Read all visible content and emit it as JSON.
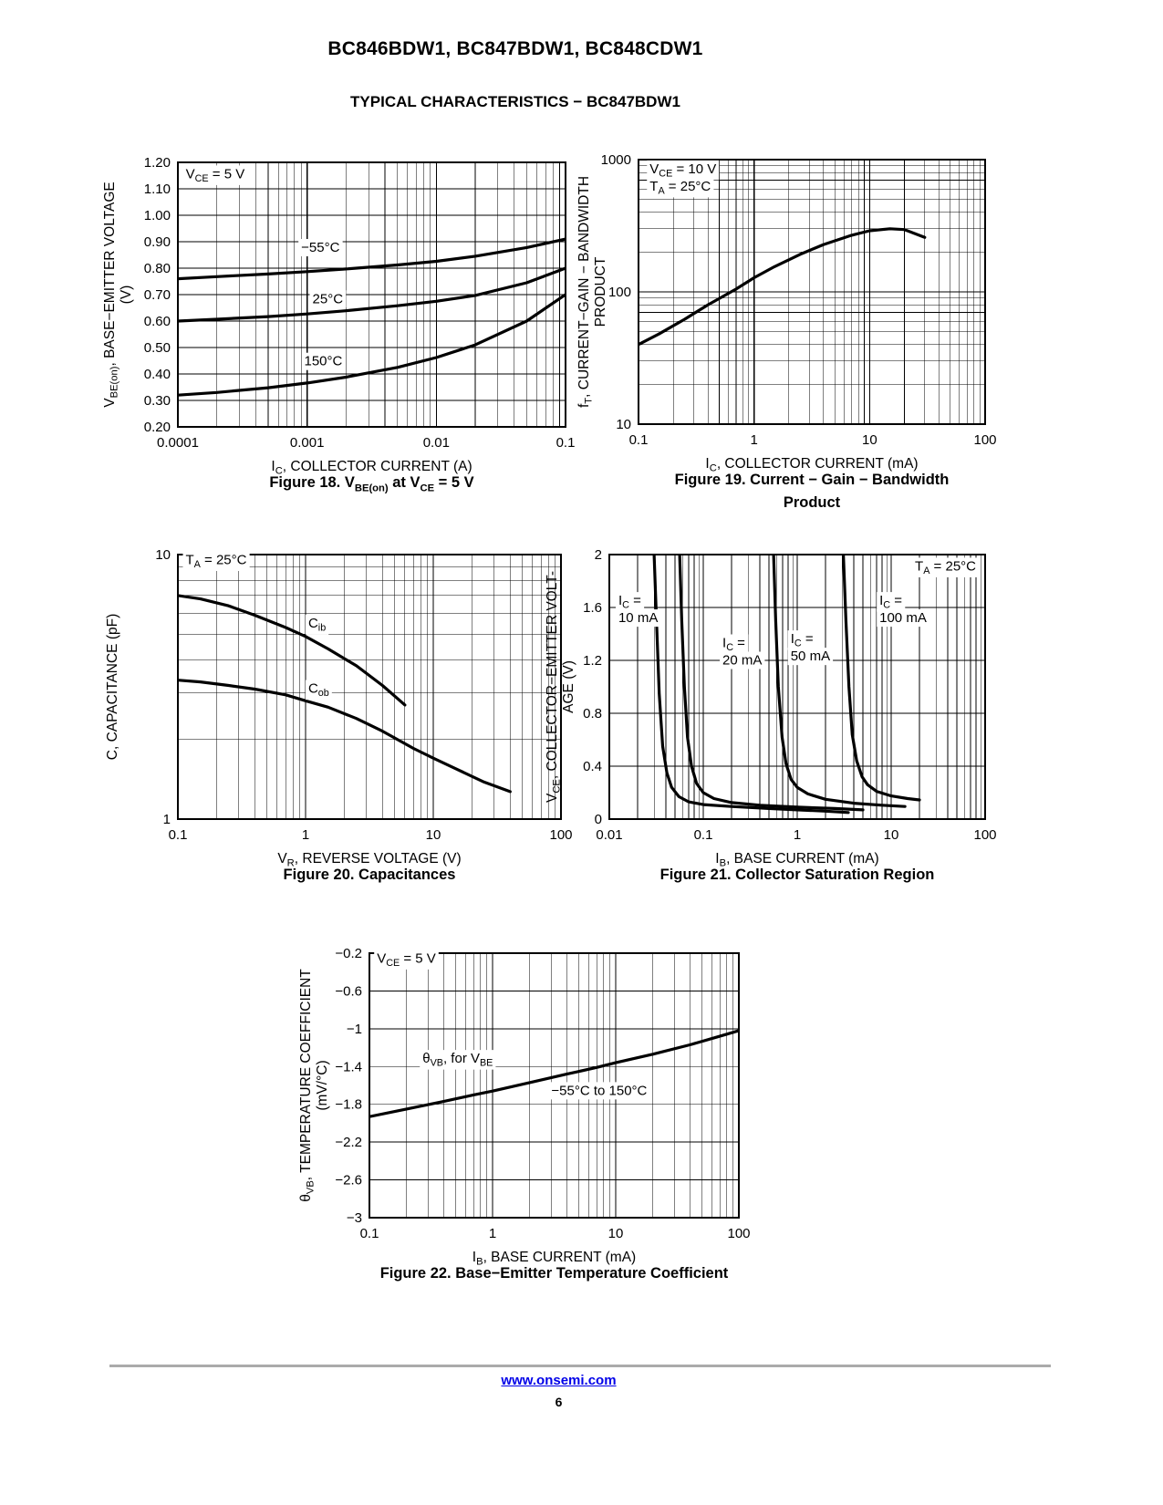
{
  "header": {
    "title": "BC846BDW1, BC847BDW1, BC848CDW1",
    "subtitle": "TYPICAL CHARACTERISTICS − BC847BDW1"
  },
  "footer": {
    "link": "www.onsemi.com",
    "page": "6"
  },
  "chart_data": [
    {
      "figure": "Figure 18",
      "type": "line",
      "title": "Figure 18. V~BE(on)~ at V~CE~ = 5 V",
      "xlabel": "I~C~, COLLECTOR CURRENT (A)",
      "ylabel_lines": [
        "V~BE(on)~, BASE−EMITTER VOLTAGE",
        "(V)"
      ],
      "xscale": "log",
      "xlim": [
        0.0001,
        0.1
      ],
      "xticks": [
        0.0001,
        0.001,
        0.01,
        0.1
      ],
      "xtick_labels": [
        "0.0001",
        "0.001",
        "0.01",
        "0.1"
      ],
      "yscale": "linear",
      "ylim": [
        0.2,
        1.2
      ],
      "yticks": [
        0.2,
        0.3,
        0.4,
        0.5,
        0.6,
        0.7,
        0.8,
        0.9,
        1.0,
        1.1,
        1.2
      ],
      "ytick_labels": [
        "0.20",
        "0.30",
        "0.40",
        "0.50",
        "0.60",
        "0.70",
        "0.80",
        "0.90",
        "1.00",
        "1.10",
        "1.20"
      ],
      "annotations": [
        {
          "lines": [
            "V~CE~ = 5 V"
          ],
          "x": 0.000115,
          "y": 1.14,
          "anchor": "start"
        },
        {
          "lines": [
            "−55°C"
          ],
          "x": 0.0009,
          "y": 0.862,
          "anchor": "start"
        },
        {
          "lines": [
            "25°C"
          ],
          "x": 0.0011,
          "y": 0.668,
          "anchor": "start"
        },
        {
          "lines": [
            "150°C"
          ],
          "x": 0.00095,
          "y": 0.432,
          "anchor": "start"
        }
      ],
      "series": [
        {
          "name": "−55°C",
          "x": [
            0.0001,
            0.0002,
            0.0005,
            0.001,
            0.002,
            0.005,
            0.01,
            0.02,
            0.05,
            0.1
          ],
          "y": [
            0.76,
            0.768,
            0.778,
            0.787,
            0.797,
            0.812,
            0.826,
            0.845,
            0.878,
            0.91
          ]
        },
        {
          "name": "25°C",
          "x": [
            0.0001,
            0.0002,
            0.0005,
            0.001,
            0.002,
            0.005,
            0.01,
            0.02,
            0.05,
            0.1
          ],
          "y": [
            0.6,
            0.607,
            0.617,
            0.627,
            0.639,
            0.658,
            0.675,
            0.697,
            0.745,
            0.8
          ]
        },
        {
          "name": "150°C",
          "x": [
            0.0001,
            0.0002,
            0.0005,
            0.001,
            0.002,
            0.005,
            0.01,
            0.02,
            0.05,
            0.1
          ],
          "y": [
            0.32,
            0.33,
            0.348,
            0.366,
            0.388,
            0.425,
            0.462,
            0.51,
            0.6,
            0.7
          ]
        }
      ]
    },
    {
      "figure": "Figure 19",
      "type": "line",
      "title": "Figure 19. Current − Gain − Bandwidth\nProduct",
      "xlabel": "I~C~, COLLECTOR CURRENT (mA)",
      "ylabel_lines": [
        "f~T~, CURRENT−GAIN − BANDWIDTH",
        "PRODUCT"
      ],
      "xscale": "log",
      "xlim": [
        0.1,
        100
      ],
      "xticks": [
        0.1,
        1,
        10,
        100
      ],
      "xtick_labels": [
        "0.1",
        "1",
        "10",
        "100"
      ],
      "yscale": "log",
      "ylim": [
        10,
        1000
      ],
      "yticks": [
        10,
        100,
        1000
      ],
      "ytick_labels": [
        "10",
        "100",
        "1000"
      ],
      "annotations": [
        {
          "lines": [
            "V~CE~ = 10 V",
            "T~A~ = 25°C"
          ],
          "x": 0.125,
          "y": 790,
          "anchor": "start"
        }
      ],
      "series": [
        {
          "name": "f~T~",
          "x": [
            0.1,
            0.15,
            0.25,
            0.4,
            0.7,
            1,
            1.5,
            2.5,
            4,
            7,
            10,
            15,
            20,
            30
          ],
          "y": [
            40,
            48,
            62,
            80,
            105,
            128,
            155,
            192,
            228,
            268,
            290,
            300,
            296,
            258
          ]
        }
      ]
    },
    {
      "figure": "Figure 20",
      "type": "line",
      "title": "Figure 20. Capacitances",
      "xlabel": "V~R~, REVERSE VOLTAGE (V)",
      "ylabel_lines": [
        "C, CAPACITANCE (pF)"
      ],
      "xscale": "log",
      "xlim": [
        0.1,
        100
      ],
      "xticks": [
        0.1,
        1,
        10,
        100
      ],
      "xtick_labels": [
        "0.1",
        "1",
        "10",
        "100"
      ],
      "yscale": "log",
      "ylim": [
        1,
        10
      ],
      "yticks": [
        1,
        10
      ],
      "ytick_labels": [
        "1",
        "10"
      ],
      "annotations": [
        {
          "lines": [
            "T~A~ = 25°C"
          ],
          "x": 0.115,
          "y": 9.2,
          "anchor": "start"
        },
        {
          "lines": [
            "C~ib~"
          ],
          "x": 1.05,
          "y": 5.3,
          "anchor": "start"
        },
        {
          "lines": [
            "C~ob~"
          ],
          "x": 1.05,
          "y": 3.0,
          "anchor": "start"
        }
      ],
      "series": [
        {
          "name": "C~ib~",
          "x": [
            0.1,
            0.15,
            0.25,
            0.4,
            0.7,
            1,
            1.5,
            2.5,
            4,
            6
          ],
          "y": [
            7.0,
            6.8,
            6.4,
            5.9,
            5.3,
            4.9,
            4.4,
            3.8,
            3.2,
            2.7
          ]
        },
        {
          "name": "C~ob~",
          "x": [
            0.1,
            0.15,
            0.25,
            0.4,
            0.7,
            1,
            1.5,
            2.5,
            4,
            7,
            10,
            15,
            25,
            40
          ],
          "y": [
            3.35,
            3.3,
            3.2,
            3.1,
            2.95,
            2.8,
            2.65,
            2.4,
            2.15,
            1.85,
            1.7,
            1.55,
            1.38,
            1.27
          ]
        }
      ]
    },
    {
      "figure": "Figure 21",
      "type": "line",
      "title": "Figure 21. Collector Saturation Region",
      "xlabel": "I~B~, BASE CURRENT (mA)",
      "ylabel_lines": [
        "V~CE~, COLLECTOR−EMITTER VOLT-",
        "AGE (V)"
      ],
      "xscale": "log",
      "xlim": [
        0.01,
        100
      ],
      "xticks": [
        0.01,
        0.1,
        1,
        10,
        100
      ],
      "xtick_labels": [
        "0.01",
        "0.1",
        "1",
        "10",
        "100"
      ],
      "yscale": "linear",
      "ylim": [
        0,
        2
      ],
      "yticks": [
        0,
        0.4,
        0.8,
        1.2,
        1.6,
        2
      ],
      "ytick_labels": [
        "0",
        "0.4",
        "0.8",
        "1.2",
        "1.6",
        "2"
      ],
      "annotations": [
        {
          "lines": [
            "T~A~ = 25°C"
          ],
          "x": 80,
          "y": 1.88,
          "anchor": "end"
        },
        {
          "lines": [
            "I~C~ =",
            "10 mA"
          ],
          "x": 0.0125,
          "y": 1.62,
          "anchor": "start"
        },
        {
          "lines": [
            "I~C~ =",
            "20 mA"
          ],
          "x": 0.16,
          "y": 1.3,
          "anchor": "start"
        },
        {
          "lines": [
            "I~C~ =",
            "50 mA"
          ],
          "x": 0.85,
          "y": 1.33,
          "anchor": "start"
        },
        {
          "lines": [
            "I~C~ =",
            "100 mA"
          ],
          "x": 7.5,
          "y": 1.62,
          "anchor": "start"
        }
      ],
      "series": [
        {
          "name": "I~C~ = 10 mA",
          "x": [
            0.03,
            0.032,
            0.034,
            0.037,
            0.041,
            0.046,
            0.055,
            0.07,
            0.1,
            0.2,
            0.5,
            1,
            2,
            3.5
          ],
          "y": [
            2.0,
            1.45,
            0.95,
            0.55,
            0.35,
            0.24,
            0.17,
            0.13,
            0.11,
            0.095,
            0.08,
            0.07,
            0.06,
            0.05
          ]
        },
        {
          "name": "I~C~ = 20 mA",
          "x": [
            0.056,
            0.059,
            0.063,
            0.068,
            0.075,
            0.085,
            0.1,
            0.13,
            0.2,
            0.4,
            1,
            2.5,
            5
          ],
          "y": [
            2.0,
            1.5,
            1.0,
            0.62,
            0.4,
            0.27,
            0.2,
            0.155,
            0.125,
            0.105,
            0.09,
            0.08,
            0.07
          ]
        },
        {
          "name": "I~C~ = 50 mA",
          "x": [
            0.56,
            0.59,
            0.63,
            0.69,
            0.76,
            0.86,
            1.0,
            1.3,
            2,
            4,
            8,
            14
          ],
          "y": [
            2.0,
            1.5,
            1.0,
            0.62,
            0.42,
            0.3,
            0.24,
            0.19,
            0.15,
            0.12,
            0.105,
            0.095
          ]
        },
        {
          "name": "I~C~ = 100 mA",
          "x": [
            3.1,
            3.3,
            3.55,
            3.85,
            4.3,
            4.9,
            5.6,
            7,
            10,
            15,
            20
          ],
          "y": [
            2.0,
            1.5,
            1.0,
            0.64,
            0.44,
            0.32,
            0.26,
            0.21,
            0.175,
            0.155,
            0.145
          ]
        }
      ]
    },
    {
      "figure": "Figure 22",
      "type": "line",
      "title": "Figure 22. Base−Emitter Temperature Coefficient",
      "xlabel": "I~B~, BASE CURRENT (mA)",
      "ylabel_lines": [
        "θ~VB~, TEMPERATURE COEFFICIENT",
        "(mV/°C)"
      ],
      "xscale": "log",
      "xlim": [
        0.1,
        100
      ],
      "xticks": [
        0.1,
        1,
        10,
        100
      ],
      "xtick_labels": [
        "0.1",
        "1",
        "10",
        "100"
      ],
      "yscale": "linear",
      "ylim": [
        -3,
        -0.2
      ],
      "yticks": [
        -0.2,
        -0.6,
        -1,
        -1.4,
        -1.8,
        -2.2,
        -2.6,
        -3
      ],
      "ytick_labels": [
        "−0.2",
        "−0.6",
        "−1",
        "−1.4",
        "−1.8",
        "−2.2",
        "−2.6",
        "−3"
      ],
      "annotations": [
        {
          "lines": [
            "V~CE~ = 5 V"
          ],
          "x": 0.115,
          "y": -0.3,
          "anchor": "start"
        },
        {
          "lines": [
            "θ~VB~, for V~BE~"
          ],
          "x": 0.27,
          "y": -1.36,
          "anchor": "start"
        },
        {
          "lines": [
            "−55°C to 150°C"
          ],
          "x": 3.0,
          "y": -1.7,
          "anchor": "start"
        }
      ],
      "series": [
        {
          "name": "θ~VB~",
          "x": [
            0.1,
            0.2,
            0.4,
            0.7,
            1,
            2,
            4,
            7,
            10,
            20,
            40,
            70,
            100
          ],
          "y": [
            -1.93,
            -1.85,
            -1.77,
            -1.7,
            -1.66,
            -1.57,
            -1.48,
            -1.41,
            -1.36,
            -1.27,
            -1.17,
            -1.08,
            -1.02
          ]
        }
      ]
    }
  ]
}
